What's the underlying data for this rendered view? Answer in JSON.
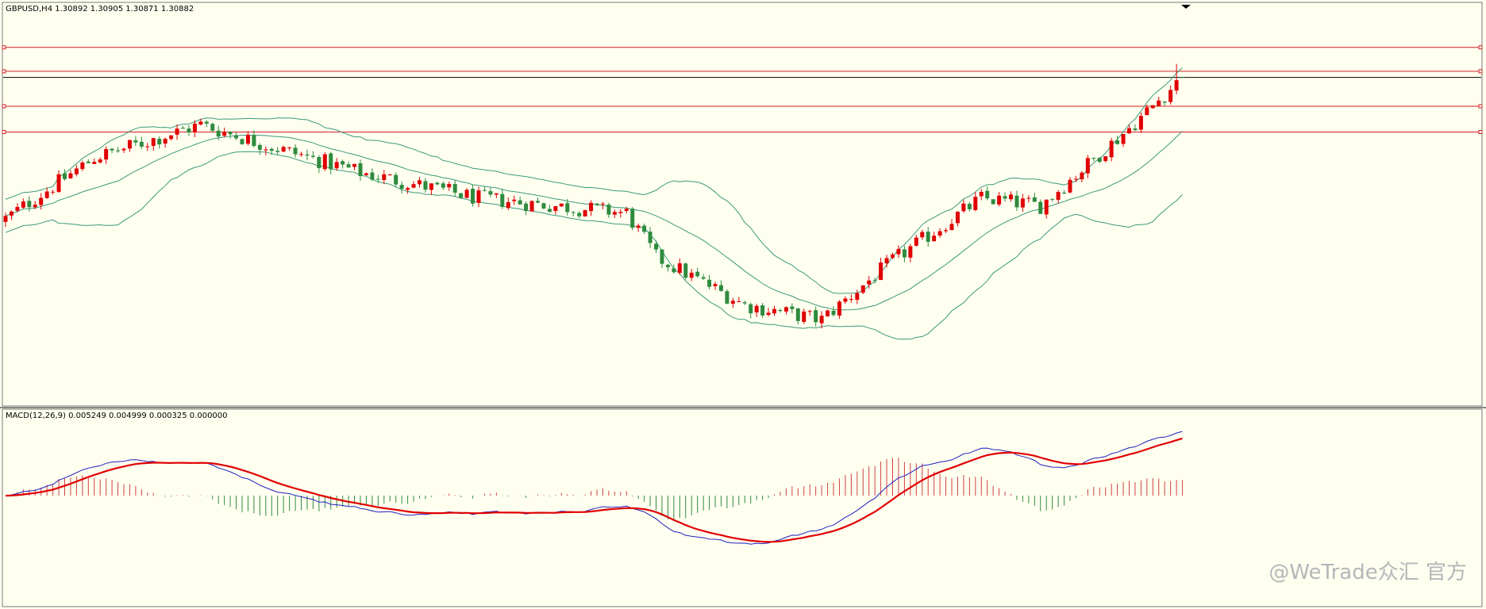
{
  "price_panel": {
    "header": "GBPUSD,H4  1.30892 1.30905 1.30871 1.30882"
  },
  "macd_panel": {
    "header": "MACD(12,26,9) 0.005249 0.004999 0.000325 0.000000"
  },
  "watermark": "@WeTrade众汇 官方",
  "colors": {
    "background": "#fffff0",
    "bull_candle": "#e00000",
    "bear_candle": "#2e8b3e",
    "bollinger": "#3a9a7a",
    "level_line": "#d02020",
    "current_price_line": "#000000",
    "macd_line": "#2020c0",
    "signal_line": "#e00000",
    "hist_pos": "#d04040",
    "hist_neg": "#2e8b3e"
  },
  "chart_data": [
    {
      "type": "candlestick",
      "symbol": "GBPUSD",
      "timeframe": "H4",
      "last_bar": {
        "open": 1.30892,
        "high": 1.30905,
        "low": 1.30871,
        "close": 1.30882
      },
      "candle_count": 200,
      "trend_keypoints": [
        {
          "bar": 0,
          "price": 1.2705
        },
        {
          "bar": 15,
          "price": 1.287
        },
        {
          "bar": 33,
          "price": 1.296
        },
        {
          "bar": 45,
          "price": 1.29
        },
        {
          "bar": 60,
          "price": 1.283
        },
        {
          "bar": 80,
          "price": 1.276
        },
        {
          "bar": 105,
          "price": 1.272
        },
        {
          "bar": 110,
          "price": 1.26
        },
        {
          "bar": 125,
          "price": 1.247
        },
        {
          "bar": 138,
          "price": 1.243
        },
        {
          "bar": 150,
          "price": 1.259
        },
        {
          "bar": 165,
          "price": 1.276
        },
        {
          "bar": 175,
          "price": 1.274
        },
        {
          "bar": 190,
          "price": 1.295
        },
        {
          "bar": 199,
          "price": 1.3088
        }
      ],
      "indicators": [
        "Bollinger Bands"
      ],
      "horizontal_levels": [
        1.317,
        1.3105,
        1.301,
        1.294
      ],
      "current_price_line": 1.30882,
      "ylim": [
        1.22,
        1.329
      ]
    },
    {
      "type": "line",
      "indicator": "MACD",
      "params": [
        12,
        26,
        9
      ],
      "values": {
        "main": 0.005249,
        "signal": 0.004999,
        "histogram": 0.000325,
        "extra": 0.0
      },
      "ylim": [
        -0.009,
        0.007
      ]
    }
  ]
}
